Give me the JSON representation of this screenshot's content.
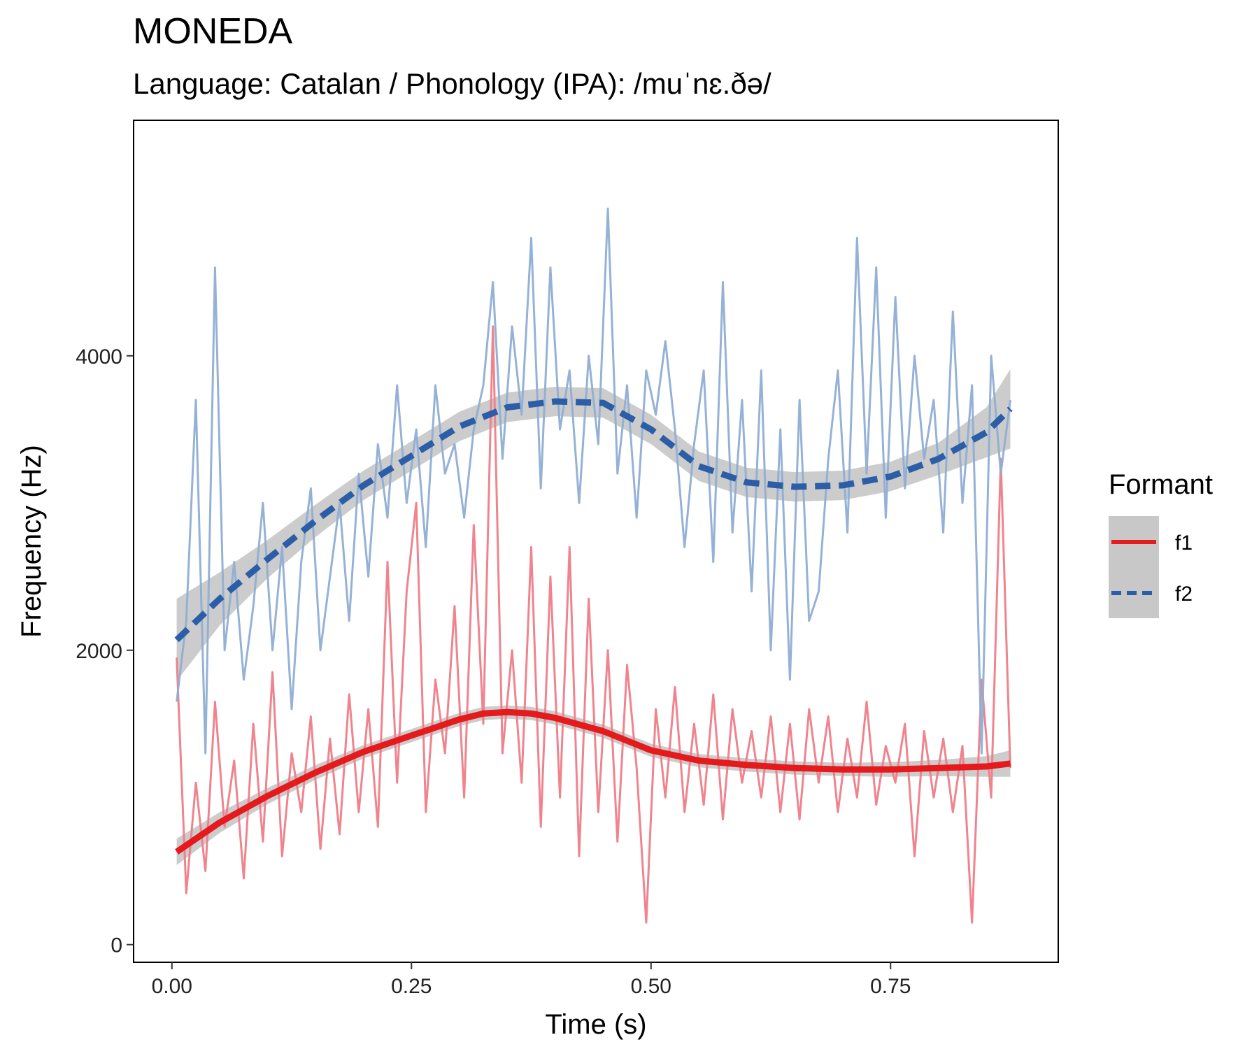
{
  "chart_data": {
    "type": "line",
    "title": "MONEDA",
    "subtitle": "Language: Catalan / Phonology (IPA): /muˈnɛ.ðə/",
    "xlabel": "Time (s)",
    "ylabel": "Frequency (Hz)",
    "xlim": [
      -0.04,
      0.925
    ],
    "ylim": [
      -120,
      5600
    ],
    "x_ticks": [
      0.0,
      0.25,
      0.5,
      0.75
    ],
    "x_tick_labels": [
      "0.00",
      "0.25",
      "0.50",
      "0.75"
    ],
    "y_ticks": [
      0,
      2000,
      4000
    ],
    "y_tick_labels": [
      "0",
      "2000",
      "4000"
    ],
    "grid": false,
    "legend": {
      "title": "Formant",
      "position": "right"
    },
    "series": [
      {
        "name": "f1",
        "color": "#e41a1c",
        "raw_color": "#ee7d88",
        "linestyle": "solid",
        "raw": {
          "x": [
            0.005,
            0.015,
            0.025,
            0.035,
            0.045,
            0.055,
            0.065,
            0.075,
            0.085,
            0.095,
            0.105,
            0.115,
            0.125,
            0.135,
            0.145,
            0.155,
            0.165,
            0.175,
            0.185,
            0.195,
            0.205,
            0.215,
            0.225,
            0.235,
            0.245,
            0.255,
            0.265,
            0.275,
            0.285,
            0.295,
            0.305,
            0.315,
            0.325,
            0.335,
            0.345,
            0.355,
            0.365,
            0.375,
            0.385,
            0.395,
            0.405,
            0.415,
            0.425,
            0.435,
            0.445,
            0.455,
            0.465,
            0.475,
            0.485,
            0.495,
            0.505,
            0.515,
            0.525,
            0.535,
            0.545,
            0.555,
            0.565,
            0.575,
            0.585,
            0.595,
            0.605,
            0.615,
            0.625,
            0.635,
            0.645,
            0.655,
            0.665,
            0.675,
            0.685,
            0.695,
            0.705,
            0.715,
            0.725,
            0.735,
            0.745,
            0.755,
            0.765,
            0.775,
            0.785,
            0.795,
            0.805,
            0.815,
            0.825,
            0.835,
            0.845,
            0.855,
            0.865,
            0.875
          ],
          "y": [
            1950,
            350,
            1100,
            500,
            1650,
            800,
            1250,
            450,
            1500,
            700,
            1850,
            600,
            1300,
            900,
            1550,
            650,
            1400,
            750,
            1700,
            900,
            1600,
            800,
            2600,
            1100,
            2400,
            3000,
            900,
            1800,
            1300,
            2300,
            1000,
            2850,
            1500,
            4200,
            1300,
            2000,
            1100,
            2700,
            800,
            2500,
            1000,
            2700,
            600,
            2350,
            900,
            2000,
            700,
            1900,
            1200,
            150,
            1600,
            1000,
            1750,
            900,
            1500,
            950,
            1700,
            850,
            1600,
            1100,
            1450,
            1000,
            1550,
            900,
            1500,
            850,
            1600,
            1100,
            1550,
            900,
            1400,
            1000,
            1650,
            950,
            1350,
            1100,
            1500,
            600,
            1450,
            1000,
            1400,
            900,
            1350,
            150,
            1800,
            1000,
            3300,
            1200
          ]
        },
        "smooth": {
          "x": [
            0.005,
            0.05,
            0.1,
            0.15,
            0.2,
            0.25,
            0.3,
            0.325,
            0.35,
            0.375,
            0.4,
            0.45,
            0.5,
            0.55,
            0.6,
            0.65,
            0.7,
            0.75,
            0.8,
            0.85,
            0.875
          ],
          "y": [
            630,
            830,
            1010,
            1170,
            1310,
            1420,
            1530,
            1570,
            1580,
            1570,
            1540,
            1450,
            1320,
            1250,
            1220,
            1200,
            1190,
            1190,
            1200,
            1210,
            1230
          ],
          "se": [
            90,
            70,
            55,
            50,
            45,
            45,
            45,
            45,
            45,
            45,
            45,
            45,
            45,
            45,
            45,
            45,
            45,
            50,
            55,
            70,
            90
          ]
        }
      },
      {
        "name": "f2",
        "color": "#2b5ea7",
        "raw_color": "#8faed4",
        "linestyle": "dashed",
        "raw": {
          "x": [
            0.005,
            0.015,
            0.025,
            0.035,
            0.045,
            0.055,
            0.065,
            0.075,
            0.085,
            0.095,
            0.105,
            0.115,
            0.125,
            0.135,
            0.145,
            0.155,
            0.165,
            0.175,
            0.185,
            0.195,
            0.205,
            0.215,
            0.225,
            0.235,
            0.245,
            0.255,
            0.265,
            0.275,
            0.285,
            0.295,
            0.305,
            0.315,
            0.325,
            0.335,
            0.345,
            0.355,
            0.365,
            0.375,
            0.385,
            0.395,
            0.405,
            0.415,
            0.425,
            0.435,
            0.445,
            0.455,
            0.465,
            0.475,
            0.485,
            0.495,
            0.505,
            0.515,
            0.525,
            0.535,
            0.545,
            0.555,
            0.565,
            0.575,
            0.585,
            0.595,
            0.605,
            0.615,
            0.625,
            0.635,
            0.645,
            0.655,
            0.665,
            0.675,
            0.685,
            0.695,
            0.705,
            0.715,
            0.725,
            0.735,
            0.745,
            0.755,
            0.765,
            0.775,
            0.785,
            0.795,
            0.805,
            0.815,
            0.825,
            0.835,
            0.845,
            0.855,
            0.865,
            0.875
          ],
          "y": [
            1650,
            2200,
            3700,
            1300,
            4600,
            2000,
            2600,
            1800,
            2300,
            3000,
            2000,
            2700,
            1600,
            2600,
            3100,
            2000,
            2500,
            3000,
            2200,
            3200,
            2500,
            3400,
            2900,
            3800,
            3000,
            3500,
            2700,
            3800,
            3200,
            3400,
            2900,
            3500,
            3800,
            4500,
            3300,
            4200,
            3600,
            4800,
            3100,
            4600,
            3500,
            3900,
            3000,
            4000,
            3400,
            5000,
            3200,
            3800,
            2900,
            3900,
            3600,
            4100,
            3500,
            2700,
            3400,
            3900,
            2600,
            4500,
            2800,
            3700,
            2400,
            3900,
            2000,
            3500,
            1800,
            3700,
            2200,
            2400,
            3300,
            3900,
            2800,
            4800,
            3200,
            4600,
            2900,
            4400,
            3100,
            4000,
            3300,
            3700,
            2800,
            4300,
            3000,
            3800,
            1300,
            4000,
            3200,
            3700
          ]
        },
        "smooth": {
          "x": [
            0.005,
            0.05,
            0.1,
            0.15,
            0.2,
            0.25,
            0.3,
            0.35,
            0.4,
            0.45,
            0.5,
            0.55,
            0.6,
            0.65,
            0.7,
            0.75,
            0.8,
            0.85,
            0.875
          ],
          "y": [
            2070,
            2350,
            2620,
            2880,
            3120,
            3320,
            3520,
            3650,
            3690,
            3680,
            3500,
            3250,
            3140,
            3110,
            3120,
            3180,
            3300,
            3480,
            3640
          ],
          "se": [
            280,
            180,
            130,
            110,
            100,
            100,
            100,
            100,
            100,
            100,
            100,
            100,
            100,
            100,
            100,
            100,
            110,
            170,
            270
          ]
        }
      }
    ]
  }
}
